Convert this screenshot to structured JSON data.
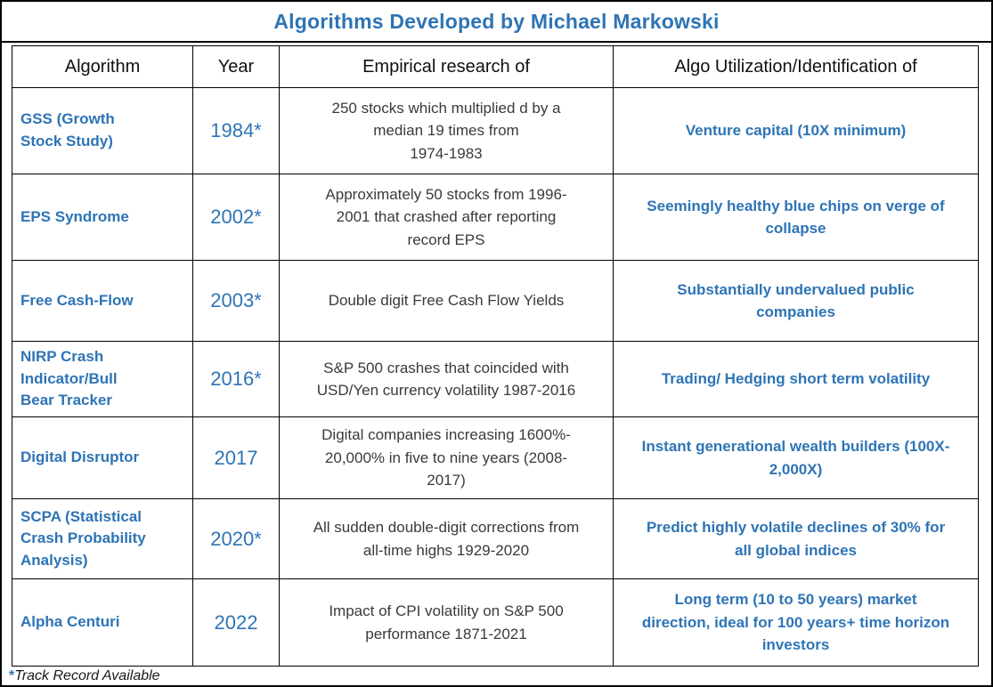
{
  "title": "Algorithms Developed by Michael Markowski",
  "columns": [
    "Algorithm",
    "Year",
    "Empirical research of",
    "Algo Utilization/Identification of"
  ],
  "rows": [
    {
      "algorithm": "GSS (Growth\nStock Study)",
      "year": "1984*",
      "research": "250 stocks which multiplied d by a\nmedian 19 times from\n1974-1983",
      "utilization": "Venture capital (10X minimum)"
    },
    {
      "algorithm": "EPS Syndrome",
      "year": "2002*",
      "research": "Approximately 50 stocks from 1996-\n2001 that crashed after reporting\nrecord EPS",
      "utilization": "Seemingly healthy blue chips on verge of\ncollapse"
    },
    {
      "algorithm": "Free Cash-Flow",
      "year": "2003*",
      "research": "Double digit Free Cash Flow Yields",
      "utilization": "Substantially undervalued public\ncompanies"
    },
    {
      "algorithm": "NIRP Crash\nIndicator/Bull\nBear Tracker",
      "year": "2016*",
      "research": "S&P 500 crashes that coincided with\nUSD/Yen currency volatility 1987-2016",
      "utilization": "Trading/ Hedging short term volatility"
    },
    {
      "algorithm": "Digital Disruptor",
      "year": "2017",
      "research": "Digital companies increasing 1600%-\n20,000% in five to nine years (2008-\n2017)",
      "utilization": "Instant generational wealth builders (100X-\n2,000X)"
    },
    {
      "algorithm": "SCPA (Statistical\nCrash Probability\nAnalysis)",
      "year": "2020*",
      "research": "All sudden double-digit corrections from\nall-time highs 1929-2020",
      "utilization": "Predict highly volatile declines of 30% for\nall global indices"
    },
    {
      "algorithm": "Alpha Centuri",
      "year": "2022",
      "research": "Impact of CPI volatility on S&P 500\nperformance 1871-2021",
      "utilization": "Long term (10 to 50 years) market\ndirection, ideal for 100 years+ time horizon\ninvestors"
    }
  ],
  "footnote": {
    "marker": "*",
    "text": "Track Record Available"
  },
  "colors": {
    "accent_blue": "#2E74B5",
    "text_dark": "#3A3A3A",
    "border": "#000000"
  }
}
